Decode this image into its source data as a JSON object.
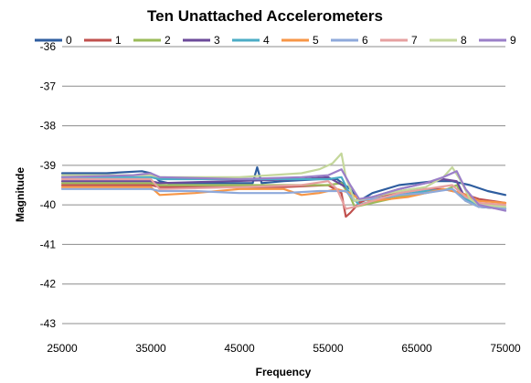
{
  "chart_data": {
    "type": "line",
    "title": "Ten Unattached Accelerometers",
    "xlabel": "Frequency",
    "ylabel": "Magnitude",
    "xlim": [
      25000,
      75000
    ],
    "ylim": [
      -43,
      -36
    ],
    "xticks": [
      25000,
      35000,
      45000,
      55000,
      65000,
      75000
    ],
    "yticks": [
      -36,
      -37,
      -38,
      -39,
      -40,
      -41,
      -42,
      -43
    ],
    "grid": "horizontal",
    "legend_position": "top",
    "series": [
      {
        "name": "0",
        "color": "#2E5D9F",
        "x": [
          25000,
          30000,
          34000,
          35000,
          36000,
          37000,
          45000,
          46500,
          47000,
          47500,
          50000,
          54000,
          56000,
          57500,
          58500,
          60000,
          63000,
          65000,
          67000,
          69000,
          71000,
          73000,
          75000
        ],
        "values": [
          -39.2,
          -39.2,
          -39.15,
          -39.2,
          -39.4,
          -39.45,
          -39.45,
          -39.45,
          -39.05,
          -39.45,
          -39.4,
          -39.35,
          -39.35,
          -39.6,
          -39.9,
          -39.7,
          -39.5,
          -39.45,
          -39.4,
          -39.4,
          -39.5,
          -39.65,
          -39.75
        ]
      },
      {
        "name": "1",
        "color": "#C0504D",
        "x": [
          25000,
          35000,
          36000,
          45000,
          50000,
          55000,
          56500,
          57000,
          57500,
          58500,
          60000,
          63000,
          66000,
          68000,
          70000,
          72000,
          75000
        ],
        "values": [
          -39.5,
          -39.5,
          -39.55,
          -39.55,
          -39.55,
          -39.5,
          -39.7,
          -40.3,
          -40.2,
          -39.95,
          -39.8,
          -39.7,
          -39.6,
          -39.6,
          -39.7,
          -39.85,
          -39.95
        ]
      },
      {
        "name": "2",
        "color": "#9BBB59",
        "x": [
          25000,
          35000,
          36000,
          45000,
          52000,
          55000,
          56500,
          57500,
          58000,
          60000,
          63000,
          66000,
          68500,
          69500,
          70500,
          72000,
          75000
        ],
        "values": [
          -39.45,
          -39.45,
          -39.5,
          -39.5,
          -39.5,
          -39.5,
          -39.45,
          -39.8,
          -40.05,
          -39.95,
          -39.8,
          -39.7,
          -39.6,
          -39.5,
          -39.9,
          -40.05,
          -40.1
        ]
      },
      {
        "name": "3",
        "color": "#6B4A9A",
        "x": [
          25000,
          35000,
          36000,
          44000,
          52000,
          55000,
          57000,
          58000,
          60000,
          63000,
          66000,
          68000,
          69500,
          70500,
          72000,
          75000
        ],
        "values": [
          -39.4,
          -39.4,
          -39.45,
          -39.4,
          -39.35,
          -39.3,
          -39.55,
          -39.9,
          -39.8,
          -39.6,
          -39.45,
          -39.35,
          -39.4,
          -39.85,
          -40.05,
          -40.1
        ]
      },
      {
        "name": "4",
        "color": "#4BACC6",
        "x": [
          25000,
          35000,
          36000,
          45000,
          50000,
          55000,
          56500,
          57500,
          58500,
          60000,
          63000,
          66000,
          69000,
          70500,
          72000,
          75000
        ],
        "values": [
          -39.3,
          -39.3,
          -39.35,
          -39.35,
          -39.35,
          -39.35,
          -39.3,
          -39.75,
          -40.0,
          -39.9,
          -39.75,
          -39.65,
          -39.6,
          -39.85,
          -40.0,
          -40.05
        ]
      },
      {
        "name": "5",
        "color": "#F79646",
        "x": [
          25000,
          35000,
          36000,
          40000,
          45000,
          50000,
          52000,
          54000,
          56000,
          57500,
          58500,
          60000,
          64000,
          68000,
          70000,
          72000,
          75000
        ],
        "values": [
          -39.55,
          -39.55,
          -39.75,
          -39.7,
          -39.6,
          -39.6,
          -39.75,
          -39.7,
          -39.6,
          -39.7,
          -39.85,
          -39.9,
          -39.8,
          -39.6,
          -39.7,
          -39.9,
          -39.95
        ]
      },
      {
        "name": "6",
        "color": "#8EA9DB",
        "x": [
          25000,
          35000,
          36000,
          40000,
          45000,
          50000,
          54000,
          57000,
          58000,
          60000,
          63000,
          66000,
          69000,
          70500,
          72000,
          75000
        ],
        "values": [
          -39.6,
          -39.6,
          -39.65,
          -39.65,
          -39.7,
          -39.7,
          -39.65,
          -39.65,
          -39.9,
          -39.85,
          -39.75,
          -39.7,
          -39.6,
          -39.9,
          -40.05,
          -40.1
        ]
      },
      {
        "name": "7",
        "color": "#E6A0A0",
        "x": [
          25000,
          35000,
          36000,
          45000,
          52000,
          55000,
          56000,
          57000,
          58000,
          60000,
          63000,
          66000,
          69000,
          70500,
          72000,
          75000
        ],
        "values": [
          -39.35,
          -39.35,
          -39.6,
          -39.55,
          -39.5,
          -39.4,
          -39.6,
          -40.1,
          -40.05,
          -39.9,
          -39.7,
          -39.6,
          -39.5,
          -39.8,
          -39.95,
          -40.0
        ]
      },
      {
        "name": "8",
        "color": "#C4D79B",
        "x": [
          25000,
          35000,
          36000,
          45000,
          52000,
          54000,
          55500,
          56500,
          57000,
          58000,
          60000,
          63000,
          66000,
          68000,
          69000,
          70000,
          71000,
          72000,
          75000
        ],
        "values": [
          -39.25,
          -39.25,
          -39.3,
          -39.3,
          -39.2,
          -39.1,
          -38.95,
          -38.7,
          -39.3,
          -39.9,
          -39.8,
          -39.65,
          -39.55,
          -39.3,
          -39.05,
          -39.4,
          -39.85,
          -40.0,
          -40.05
        ]
      },
      {
        "name": "9",
        "color": "#9B7FC8",
        "x": [
          25000,
          33000,
          35000,
          36000,
          45000,
          52000,
          55000,
          56500,
          57500,
          58500,
          60000,
          63000,
          66000,
          68000,
          69500,
          70500,
          72000,
          75000
        ],
        "values": [
          -39.3,
          -39.25,
          -39.2,
          -39.3,
          -39.35,
          -39.3,
          -39.25,
          -39.1,
          -39.5,
          -39.85,
          -39.8,
          -39.6,
          -39.45,
          -39.3,
          -39.15,
          -39.6,
          -40.0,
          -40.15
        ]
      }
    ]
  }
}
